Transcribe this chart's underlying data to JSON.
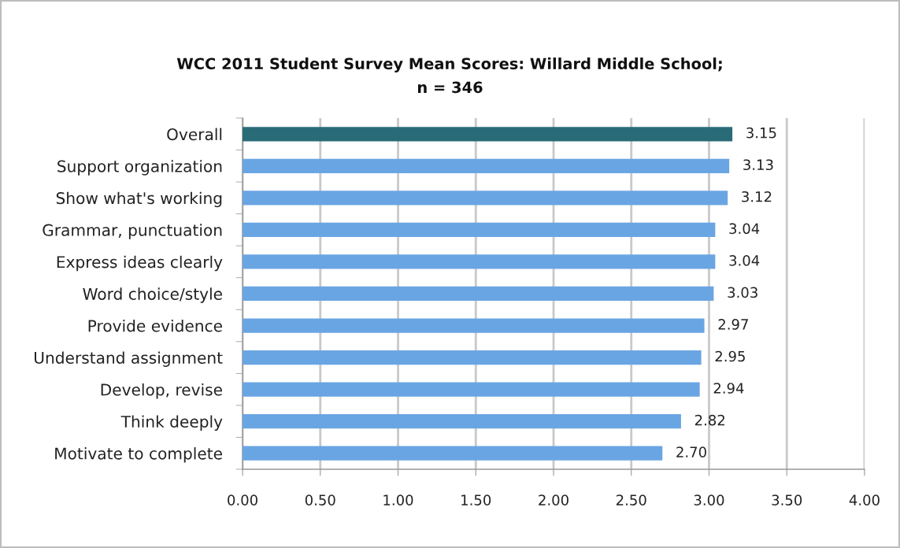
{
  "chart_data": {
    "type": "bar",
    "orientation": "horizontal",
    "title": "WCC 2011 Student Survey Mean Scores: Willard Middle School;\nn = 346",
    "categories": [
      "Overall",
      "Support organization",
      "Show what's working",
      "Grammar, punctuation",
      "Express ideas clearly",
      "Word choice/style",
      "Provide evidence",
      "Understand assignment",
      "Develop, revise",
      "Think deeply",
      "Motivate to complete"
    ],
    "values": [
      3.15,
      3.13,
      3.12,
      3.04,
      3.04,
      3.03,
      2.97,
      2.95,
      2.94,
      2.82,
      2.7
    ],
    "value_labels": [
      "3.15",
      "3.13",
      "3.12",
      "3.04",
      "3.04",
      "3.03",
      "2.97",
      "2.95",
      "2.94",
      "2.82",
      "2.70"
    ],
    "colors": [
      "#2a6b78",
      "#6aa5e3",
      "#6aa5e3",
      "#6aa5e3",
      "#6aa5e3",
      "#6aa5e3",
      "#6aa5e3",
      "#6aa5e3",
      "#6aa5e3",
      "#6aa5e3",
      "#6aa5e3"
    ],
    "xlim": [
      0,
      4
    ],
    "xticks": [
      {
        "value": 0,
        "label": "0.00"
      },
      {
        "value": 0.5,
        "label": "0.50"
      },
      {
        "value": 1,
        "label": "1.00"
      },
      {
        "value": 1.5,
        "label": "1.50"
      },
      {
        "value": 2,
        "label": "2.00"
      },
      {
        "value": 2.5,
        "label": "2.50"
      },
      {
        "value": 3,
        "label": "3.00"
      },
      {
        "value": 3.5,
        "label": "3.50"
      },
      {
        "value": 4,
        "label": "4.00"
      }
    ],
    "grid": "x"
  }
}
